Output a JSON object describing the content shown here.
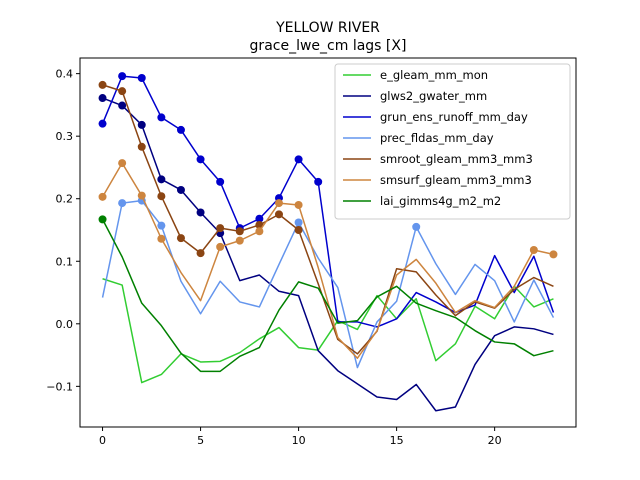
{
  "chart_data": {
    "type": "line",
    "title": "YELLOW RIVER",
    "subtitle": "grace_lwe_cm lags [X]",
    "xlabel": "",
    "ylabel": "",
    "xlim": [
      -1.15,
      24.15
    ],
    "ylim": [
      -0.165,
      0.425
    ],
    "xticks": [
      0,
      5,
      10,
      15,
      20
    ],
    "yticks": [
      -0.1,
      0.0,
      0.1,
      0.2,
      0.3,
      0.4
    ],
    "ytick_labels": [
      "−0.1",
      "0.0",
      "0.1",
      "0.2",
      "0.3",
      "0.4"
    ],
    "legend_position": "top-right",
    "grid": false,
    "series": [
      {
        "name": "e_gleam_mm_mon",
        "color": "#32cd32",
        "x": [
          0,
          1,
          2,
          3,
          4,
          5,
          6,
          7,
          8,
          9,
          10,
          11,
          12,
          13,
          14,
          15,
          16,
          17,
          18,
          19,
          20,
          21,
          22,
          23
        ],
        "values": [
          0.072,
          0.062,
          -0.094,
          -0.081,
          -0.048,
          -0.061,
          -0.06,
          -0.046,
          -0.024,
          -0.006,
          -0.038,
          -0.042,
          0.005,
          -0.009,
          0.045,
          0.008,
          0.04,
          -0.059,
          -0.032,
          0.028,
          0.008,
          0.06,
          0.027,
          0.04
        ],
        "markers": []
      },
      {
        "name": "glws2_gwater_mm",
        "color": "#000080",
        "x": [
          0,
          1,
          2,
          3,
          4,
          5,
          6,
          7,
          8,
          9,
          10,
          11,
          12,
          13,
          14,
          15,
          16,
          17,
          18,
          19,
          20,
          21,
          22,
          23
        ],
        "values": [
          0.361,
          0.349,
          0.318,
          0.231,
          0.214,
          0.178,
          0.145,
          0.069,
          0.078,
          0.052,
          0.045,
          -0.043,
          -0.075,
          -0.096,
          -0.117,
          -0.121,
          -0.097,
          -0.139,
          -0.133,
          -0.065,
          -0.019,
          -0.005,
          -0.008,
          -0.017
        ],
        "markers": [
          0,
          1,
          2,
          3,
          4,
          5,
          6
        ]
      },
      {
        "name": "grun_ens_runoff_mm_day",
        "color": "#0000cd",
        "x": [
          0,
          1,
          2,
          3,
          4,
          5,
          6,
          7,
          8,
          9,
          10,
          11,
          12,
          13,
          14,
          15,
          16,
          17,
          18,
          19,
          20,
          21,
          22,
          23
        ],
        "values": [
          0.32,
          0.396,
          0.393,
          0.33,
          0.31,
          0.263,
          0.227,
          0.153,
          0.168,
          0.201,
          0.263,
          0.227,
          0.003,
          0.003,
          -0.005,
          0.008,
          0.05,
          0.035,
          0.018,
          0.03,
          0.109,
          0.05,
          0.108,
          0.018
        ],
        "markers": [
          0,
          1,
          2,
          3,
          4,
          5,
          6,
          7,
          8,
          9,
          10,
          11
        ]
      },
      {
        "name": "prec_fldas_mm_day",
        "color": "#6495ed",
        "x": [
          0,
          1,
          2,
          3,
          4,
          5,
          6,
          7,
          8,
          9,
          10,
          11,
          12,
          13,
          14,
          15,
          16,
          17,
          18,
          19,
          20,
          21,
          22,
          23
        ],
        "values": [
          0.042,
          0.193,
          0.197,
          0.157,
          0.068,
          0.016,
          0.068,
          0.035,
          0.027,
          0.095,
          0.162,
          0.105,
          0.058,
          -0.07,
          0.003,
          0.036,
          0.155,
          0.096,
          0.047,
          0.095,
          0.069,
          0.003,
          0.07,
          0.01
        ],
        "markers": [
          1,
          2,
          3,
          10,
          16
        ]
      },
      {
        "name": "smroot_gleam_mm3_mm3",
        "color": "#8b4513",
        "x": [
          0,
          1,
          2,
          3,
          4,
          5,
          6,
          7,
          8,
          9,
          10,
          11,
          12,
          13,
          14,
          15,
          16,
          17,
          18,
          19,
          20,
          21,
          22,
          23
        ],
        "values": [
          0.382,
          0.372,
          0.283,
          0.204,
          0.137,
          0.113,
          0.153,
          0.148,
          0.158,
          0.175,
          0.15,
          0.064,
          -0.025,
          -0.048,
          -0.012,
          0.088,
          0.083,
          0.046,
          0.013,
          0.035,
          0.025,
          0.055,
          0.074,
          0.06
        ],
        "markers": [
          0,
          1,
          2,
          3,
          4,
          5,
          6,
          7,
          8,
          9,
          10
        ]
      },
      {
        "name": "smsurf_gleam_mm3_mm3",
        "color": "#cd853f",
        "x": [
          0,
          1,
          2,
          3,
          4,
          5,
          6,
          7,
          8,
          9,
          10,
          11,
          12,
          13,
          14,
          15,
          16,
          17,
          18,
          19,
          20,
          21,
          22,
          23
        ],
        "values": [
          0.203,
          0.257,
          0.205,
          0.136,
          0.082,
          0.037,
          0.123,
          0.133,
          0.148,
          0.193,
          0.19,
          0.09,
          -0.022,
          -0.055,
          -0.011,
          0.078,
          0.103,
          0.065,
          0.018,
          0.037,
          0.026,
          0.06,
          0.118,
          0.111
        ],
        "markers": [
          0,
          1,
          2,
          3,
          6,
          7,
          8,
          9,
          10,
          22,
          23
        ]
      },
      {
        "name": "lai_gimms4g_m2_m2",
        "color": "#008000",
        "x": [
          0,
          1,
          2,
          3,
          4,
          5,
          6,
          7,
          8,
          9,
          10,
          11,
          12,
          13,
          14,
          15,
          16,
          17,
          18,
          19,
          20,
          21,
          22,
          23
        ],
        "values": [
          0.167,
          0.107,
          0.033,
          -0.003,
          -0.047,
          -0.076,
          -0.076,
          -0.052,
          -0.038,
          0.022,
          0.067,
          0.057,
          0.001,
          0.005,
          0.043,
          0.06,
          0.033,
          0.021,
          0.01,
          -0.011,
          -0.029,
          -0.032,
          -0.051,
          -0.043
        ],
        "markers": [
          0
        ]
      }
    ]
  }
}
